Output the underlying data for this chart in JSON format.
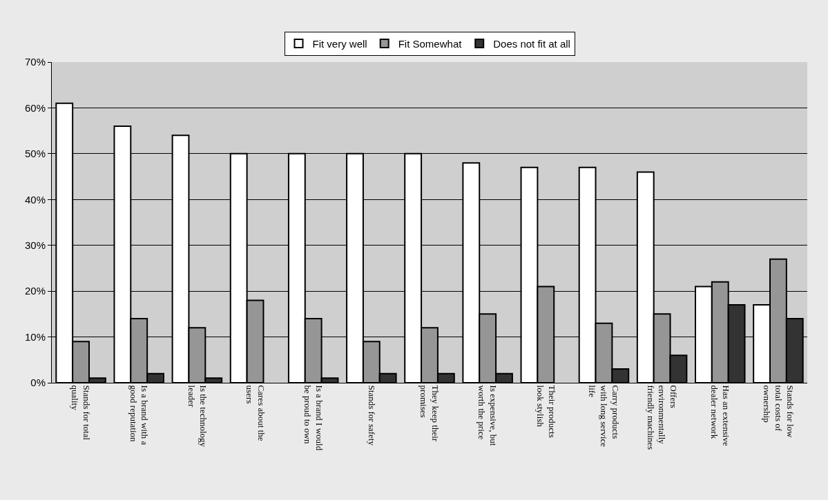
{
  "chart_data": {
    "type": "bar",
    "categories": [
      "Stands for total quality",
      "Is a brand with a good reputation",
      "Is the technology leader",
      "Cares about the users",
      "Is a brand I would be proud to own",
      "Stands for safety",
      "They keep their promises",
      "Is expensive, but worth the price",
      "Their products look stylish",
      "Carry products with long service life",
      "Offers environmentally friendly machines",
      "Has an extensive dealer network",
      "Stands for low total costs of ownership"
    ],
    "series": [
      {
        "name": "Fit very well",
        "color": "#ffffff",
        "values": [
          61,
          56,
          54,
          50,
          50,
          50,
          50,
          48,
          47,
          47,
          46,
          21,
          17
        ]
      },
      {
        "name": "Fit Somewhat",
        "color": "#969696",
        "values": [
          9,
          14,
          12,
          18,
          14,
          9,
          12,
          15,
          21,
          13,
          15,
          22,
          27
        ]
      },
      {
        "name": "Does not fit at all",
        "color": "#333333",
        "values": [
          1,
          2,
          1,
          null,
          1,
          2,
          2,
          2,
          null,
          3,
          6,
          17,
          14
        ]
      }
    ],
    "ylim": [
      0,
      70
    ],
    "yticks": [
      {
        "value": 0,
        "label": "0%"
      },
      {
        "value": 10,
        "label": "10%"
      },
      {
        "value": 20,
        "label": "20%"
      },
      {
        "value": 30,
        "label": "30%"
      },
      {
        "value": 40,
        "label": "40%"
      },
      {
        "value": 50,
        "label": "50%"
      },
      {
        "value": 60,
        "label": "60%"
      },
      {
        "value": 70,
        "label": "70%"
      }
    ],
    "grid": "y",
    "legend": "top"
  }
}
